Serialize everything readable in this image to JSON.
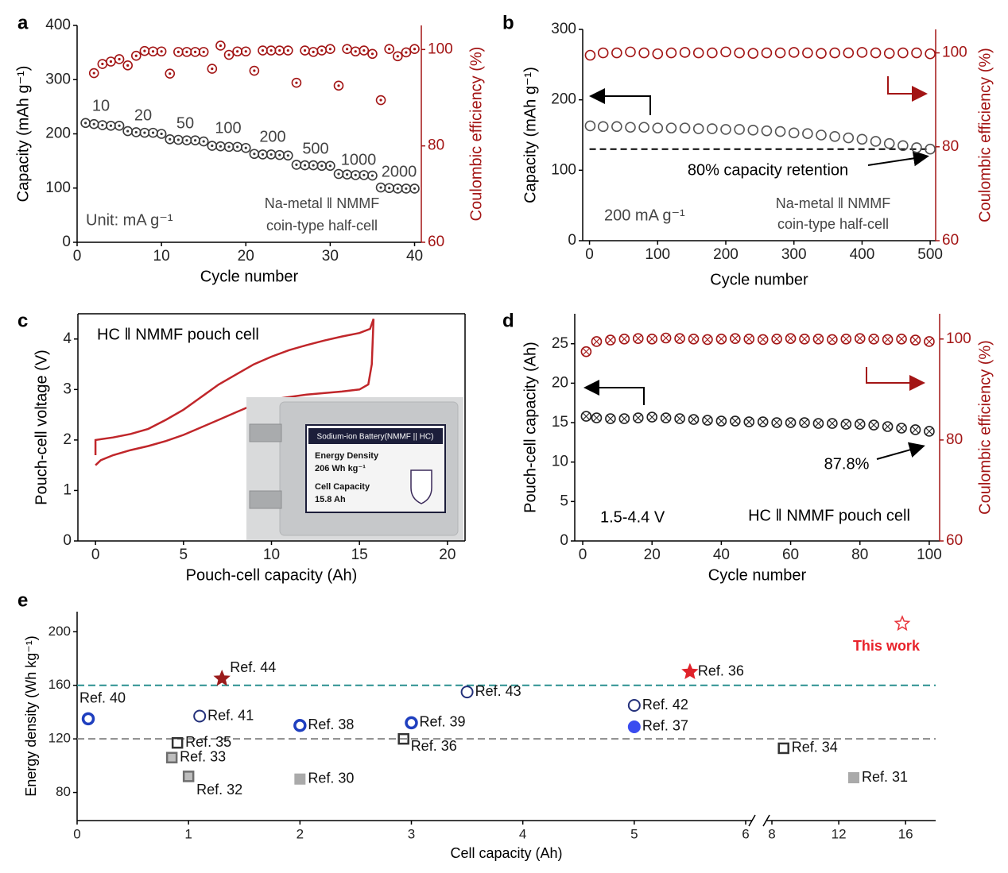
{
  "chart_data": [
    {
      "panel": "a",
      "type": "dual_scatter",
      "x": [
        1,
        2,
        3,
        4,
        5,
        6,
        7,
        8,
        9,
        10,
        11,
        12,
        13,
        14,
        15,
        16,
        17,
        18,
        19,
        20,
        21,
        22,
        23,
        24,
        25,
        26,
        27,
        28,
        29,
        30,
        31,
        32,
        33,
        34,
        35,
        36,
        37,
        38,
        39,
        40
      ],
      "series": [
        {
          "color": "#3a3a3a",
          "values": [
            220,
            218,
            216,
            215,
            215,
            205,
            203,
            202,
            202,
            200,
            190,
            189,
            188,
            188,
            186,
            178,
            177,
            176,
            176,
            174,
            163,
            162,
            162,
            161,
            160,
            143,
            142,
            142,
            141,
            141,
            126,
            125,
            124,
            124,
            123,
            101,
            100,
            99,
            99,
            99
          ]
        },
        {
          "color": "#a31515",
          "axis": "y2",
          "values": [
            null,
            95.1,
            97,
            97.5,
            98,
            96.7,
            98.7,
            99.7,
            99.6,
            99.6,
            95,
            99.5,
            99.5,
            99.5,
            99.5,
            96,
            100.8,
            98.9,
            99.6,
            99.6,
            95.6,
            99.8,
            99.8,
            99.8,
            99.8,
            93.1,
            99.8,
            99.5,
            99.8,
            100.1,
            92.5,
            100.1,
            99.6,
            99.8,
            99.1,
            89.5,
            100.1,
            98.6,
            99.4,
            100.1
          ]
        }
      ],
      "xlabel": "Cycle number",
      "ylabel": "Capacity (mAh g⁻¹)",
      "y2label": "Coulombic efficiency (%)",
      "xlim": [
        0,
        40.8
      ],
      "xticks": [
        0,
        10,
        20,
        30,
        40
      ],
      "ylim": [
        0,
        400
      ],
      "yticks": [
        0,
        100,
        200,
        300,
        400
      ],
      "y2lim": [
        60,
        105
      ],
      "y2ticks": [
        60,
        80,
        100
      ],
      "annotations": [
        "10",
        "20",
        "50",
        "100",
        "200",
        "500",
        "1000",
        "2000",
        "Unit: mA g⁻¹",
        "Na-metal ‖ NMMF",
        "coin-type half-cell"
      ]
    },
    {
      "panel": "b",
      "type": "dual_scatter",
      "x": [
        1,
        20,
        40,
        60,
        80,
        100,
        120,
        140,
        160,
        180,
        200,
        220,
        240,
        260,
        280,
        300,
        320,
        340,
        360,
        380,
        400,
        420,
        440,
        460,
        480,
        500
      ],
      "series": [
        {
          "color": "#555555",
          "values": [
            163,
            162,
            162,
            161,
            161,
            160,
            160,
            160,
            159,
            159,
            158,
            158,
            157,
            156,
            155,
            153,
            152,
            150,
            148,
            146,
            144,
            141,
            138,
            135,
            132,
            130
          ]
        },
        {
          "color": "#a31515",
          "axis": "y2",
          "values": [
            99.5,
            100,
            100,
            100.2,
            100,
            99.8,
            100,
            100.1,
            100,
            100,
            100.2,
            100,
            99.9,
            100,
            100,
            100.1,
            100,
            99.9,
            100,
            100,
            100.1,
            100,
            99.9,
            100,
            100,
            99.8
          ]
        }
      ],
      "hline": 130,
      "xlabel": "Cycle number",
      "ylabel": "Capacity (mAh g⁻¹)",
      "y2label": "Coulombic efficiency (%)",
      "xlim": [
        -10,
        508
      ],
      "xticks": [
        0,
        100,
        200,
        300,
        400,
        500
      ],
      "ylim": [
        0,
        300
      ],
      "yticks": [
        0,
        100,
        200,
        300
      ],
      "y2lim": [
        60,
        105
      ],
      "y2ticks": [
        60,
        80,
        100
      ],
      "annotations": [
        "200 mA g⁻¹",
        "Na-metal ‖ NMMF",
        "coin-type half-cell",
        "80% capacity retention"
      ]
    },
    {
      "panel": "c",
      "type": "line",
      "series": [
        {
          "color": "#c0262a",
          "x": [
            0,
            0,
            1,
            2,
            3,
            4,
            5,
            6,
            7,
            8,
            9,
            10,
            11,
            12,
            13,
            14,
            15,
            15.6,
            15.8
          ],
          "values": [
            1.7,
            2.0,
            2.05,
            2.12,
            2.22,
            2.4,
            2.6,
            2.85,
            3.1,
            3.3,
            3.5,
            3.65,
            3.78,
            3.88,
            3.97,
            4.05,
            4.12,
            4.2,
            4.4
          ]
        },
        {
          "color": "#c0262a",
          "x": [
            15.8,
            15.7,
            15.5,
            15,
            14,
            12,
            10,
            9,
            8,
            7,
            6,
            5,
            4,
            3,
            2,
            1,
            0.3,
            0
          ],
          "values": [
            4.4,
            3.5,
            3.1,
            3.0,
            2.96,
            2.9,
            2.8,
            2.7,
            2.55,
            2.4,
            2.25,
            2.1,
            1.98,
            1.88,
            1.8,
            1.7,
            1.6,
            1.5
          ]
        }
      ],
      "xlabel": "Pouch-cell capacity (Ah)",
      "ylabel": "Pouch-cell voltage (V)",
      "xlim": [
        -1,
        21
      ],
      "xticks": [
        0,
        5,
        10,
        15,
        20
      ],
      "ylim": [
        0,
        4.5
      ],
      "yticks": [
        0,
        1,
        2,
        3,
        4
      ],
      "annotations": [
        "HC ‖ NMMF pouch cell"
      ],
      "inset": {
        "header": "Sodium-ion Battery(NMMF || HC)",
        "lines": [
          "Energy Density",
          "206 Wh kg⁻¹",
          "Cell Capacity",
          "15.8 Ah"
        ]
      }
    },
    {
      "panel": "d",
      "type": "dual_scatter",
      "x": [
        1,
        4,
        8,
        12,
        16,
        20,
        24,
        28,
        32,
        36,
        40,
        44,
        48,
        52,
        56,
        60,
        64,
        68,
        72,
        76,
        80,
        84,
        88,
        92,
        96,
        100
      ],
      "series": [
        {
          "color": "#222222",
          "values": [
            15.8,
            15.6,
            15.5,
            15.5,
            15.6,
            15.7,
            15.6,
            15.5,
            15.4,
            15.3,
            15.2,
            15.2,
            15.1,
            15.1,
            15.0,
            15.0,
            15.0,
            14.9,
            14.9,
            14.8,
            14.8,
            14.7,
            14.5,
            14.3,
            14.1,
            13.9
          ]
        },
        {
          "color": "#a31515",
          "axis": "y2",
          "values": [
            97.5,
            99.5,
            99.8,
            100,
            100.1,
            100,
            100.2,
            100.1,
            100,
            99.9,
            100,
            100.1,
            100,
            99.9,
            100,
            100.1,
            100,
            100,
            99.9,
            100,
            100.1,
            100,
            99.9,
            100,
            99.8,
            99.5
          ]
        }
      ],
      "xlabel": "Cycle number",
      "ylabel": "Pouch-cell capacity (Ah)",
      "y2label": "Coulombic efficiency (%)",
      "xlim": [
        -2.3,
        103
      ],
      "xticks": [
        0,
        20,
        40,
        60,
        80,
        100
      ],
      "ylim": [
        0,
        28.8
      ],
      "yticks": [
        0,
        5,
        10,
        15,
        20,
        25
      ],
      "y2lim": [
        60,
        105
      ],
      "y2ticks": [
        60,
        80,
        100
      ],
      "annotations": [
        "1.5-4.4 V",
        "HC ‖ NMMF pouch cell",
        "87.8%"
      ]
    },
    {
      "panel": "e",
      "type": "scatter",
      "series": [
        {
          "marker": "star-open",
          "color": "#e8333a",
          "x": [
            15.8
          ],
          "values": [
            206
          ],
          "labels": [
            "This work"
          ]
        },
        {
          "marker": "star",
          "color": "#9b1c1c",
          "x": [
            1.3
          ],
          "values": [
            165
          ],
          "labels": [
            "Ref. 44"
          ]
        },
        {
          "marker": "star",
          "color": "#e0222a",
          "x": [
            5.5
          ],
          "values": [
            170
          ],
          "labels": [
            "Ref. 36"
          ]
        },
        {
          "marker": "circle-thick",
          "color": "#1f3fbf",
          "x": [
            0.1,
            2.0,
            3.0
          ],
          "values": [
            135,
            130,
            132
          ],
          "labels": [
            "Ref. 40",
            "Ref. 38",
            "Ref. 39"
          ]
        },
        {
          "marker": "circle-open",
          "color": "#23307a",
          "x": [
            1.1,
            3.5,
            5.0
          ],
          "values": [
            137,
            155,
            145
          ],
          "labels": [
            "Ref. 41",
            "Ref. 43",
            "Ref. 42"
          ]
        },
        {
          "marker": "circle",
          "color": "#3a4cf0",
          "x": [
            5.0
          ],
          "values": [
            129
          ],
          "labels": [
            "Ref. 37"
          ]
        },
        {
          "marker": "square-open",
          "color": "#333333",
          "x": [
            0.9,
            2.93,
            8.7
          ],
          "values": [
            117,
            120,
            113
          ],
          "labels": [
            "Ref. 35",
            "Ref. 36",
            "Ref. 34"
          ]
        },
        {
          "marker": "square-gray",
          "color": "#6e6e6e",
          "x": [
            0.85,
            1.0
          ],
          "values": [
            106,
            92
          ],
          "labels": [
            "Ref. 33",
            "Ref. 32"
          ]
        },
        {
          "marker": "square",
          "color": "#aaaaaa",
          "x": [
            2.0,
            12.9
          ],
          "values": [
            90,
            91
          ],
          "labels": [
            "Ref. 30",
            "Ref. 31"
          ]
        }
      ],
      "hlines": [
        {
          "value": 160,
          "color": "#2a9090"
        },
        {
          "value": 120,
          "color": "#8a8a8a"
        }
      ],
      "xlabel": "Cell capacity (Ah)",
      "ylabel": "Energy density (Wh kg⁻¹)",
      "xlim": [
        0,
        17.8
      ],
      "xbreak": [
        6,
        8
      ],
      "xticks": [
        0,
        1,
        2,
        3,
        4,
        5,
        6,
        8,
        12,
        16
      ],
      "ylim": [
        59,
        215
      ],
      "yticks": [
        80,
        120,
        160,
        200
      ]
    }
  ]
}
